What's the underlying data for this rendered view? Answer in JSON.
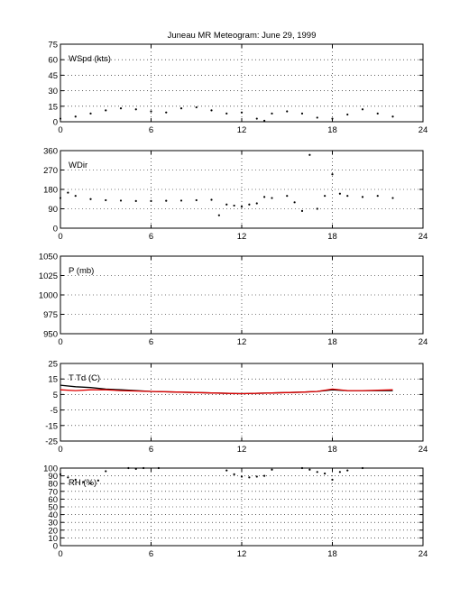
{
  "figure_title": "Juneau MR Meteogram:        June 29, 1999",
  "colors": {
    "axes": "#000000",
    "primary": "#000000",
    "dewpoint": "#e00000",
    "background": "#ffffff"
  },
  "chart_data": [
    {
      "type": "scatter",
      "label": "WSpd (kts)",
      "xlim": [
        0,
        24
      ],
      "ylim": [
        0,
        75
      ],
      "xticks": [
        0,
        6,
        12,
        18,
        24
      ],
      "yticks": [
        0,
        15,
        30,
        45,
        60,
        75
      ],
      "grid": true,
      "series": [
        {
          "color": "#000000",
          "x": [
            0,
            1,
            2,
            3,
            4,
            5,
            6,
            7,
            8,
            9,
            10,
            11,
            12,
            13,
            13.5,
            14,
            15,
            16,
            17,
            18,
            19,
            20,
            21,
            22
          ],
          "y": [
            3,
            5,
            8,
            11,
            13,
            12,
            10,
            9,
            13,
            14,
            11,
            8,
            9,
            3,
            1,
            8,
            10,
            8,
            4,
            3,
            7,
            12,
            8,
            5
          ]
        }
      ]
    },
    {
      "type": "scatter",
      "label": "WDir",
      "xlim": [
        0,
        24
      ],
      "ylim": [
        0,
        360
      ],
      "xticks": [
        0,
        6,
        12,
        18,
        24
      ],
      "yticks": [
        0,
        90,
        180,
        270,
        360
      ],
      "grid": true,
      "series": [
        {
          "color": "#000000",
          "x": [
            0,
            0.5,
            1,
            2,
            3,
            4,
            5,
            6,
            7,
            8,
            9,
            10,
            10.5,
            11,
            11.5,
            12,
            12.5,
            13,
            13.5,
            14,
            15,
            15.5,
            16,
            16.5,
            17,
            17.5,
            18,
            18.5,
            19,
            20,
            21,
            22
          ],
          "y": [
            140,
            165,
            150,
            135,
            130,
            128,
            126,
            126,
            127,
            128,
            130,
            132,
            60,
            110,
            105,
            100,
            110,
            115,
            145,
            140,
            150,
            120,
            80,
            340,
            90,
            150,
            250,
            160,
            150,
            145,
            150,
            140
          ]
        }
      ]
    },
    {
      "type": "scatter",
      "label": "P (mb)",
      "xlim": [
        0,
        24
      ],
      "ylim": [
        950,
        1050
      ],
      "xticks": [
        0,
        6,
        12,
        18,
        24
      ],
      "yticks": [
        950,
        975,
        1000,
        1025,
        1050
      ],
      "grid": true,
      "series": []
    },
    {
      "type": "line",
      "label": "T Td (C)",
      "xlim": [
        0,
        24
      ],
      "ylim": [
        -25,
        25
      ],
      "xticks": [
        0,
        6,
        12,
        18,
        24
      ],
      "yticks": [
        -25,
        -15,
        -5,
        5,
        15,
        25
      ],
      "grid": true,
      "series": [
        {
          "color": "#000000",
          "x": [
            0,
            1,
            2,
            3,
            4,
            6,
            8,
            10,
            12,
            14,
            16,
            17,
            18,
            19,
            20,
            22
          ],
          "y": [
            11,
            10,
            9.5,
            8.5,
            8,
            7,
            6.5,
            6,
            5.5,
            6,
            6.5,
            7,
            8,
            7.5,
            7.5,
            7.5
          ]
        },
        {
          "color": "#e00000",
          "x": [
            0,
            1,
            2,
            3,
            4,
            6,
            8,
            10,
            12,
            14,
            16,
            17,
            18,
            19,
            20,
            22
          ],
          "y": [
            8,
            7.5,
            8,
            8,
            7.5,
            7,
            6.5,
            6,
            5.5,
            6,
            6.5,
            7,
            8.5,
            7.5,
            7.5,
            8
          ]
        }
      ]
    },
    {
      "type": "scatter",
      "label": "RH (%)",
      "xlim": [
        0,
        24
      ],
      "ylim": [
        0,
        100
      ],
      "xticks": [
        0,
        6,
        12,
        18,
        24
      ],
      "yticks": [
        0,
        10,
        20,
        30,
        40,
        50,
        60,
        70,
        80,
        90,
        100
      ],
      "grid": true,
      "series": [
        {
          "color": "#000000",
          "x": [
            0,
            0.5,
            1,
            1.5,
            2,
            2.5,
            3,
            4.5,
            5,
            5.5,
            6.5,
            11,
            11.5,
            12,
            12.5,
            13,
            13.5,
            14,
            16,
            16.5,
            17,
            17.5,
            18,
            18.5,
            19,
            20
          ],
          "y": [
            92,
            88,
            85,
            82,
            80,
            84,
            96,
            100,
            99,
            100,
            100,
            97,
            92,
            89,
            88,
            89,
            90,
            98,
            100,
            98,
            95,
            93,
            85,
            95,
            97,
            100
          ]
        }
      ]
    }
  ]
}
